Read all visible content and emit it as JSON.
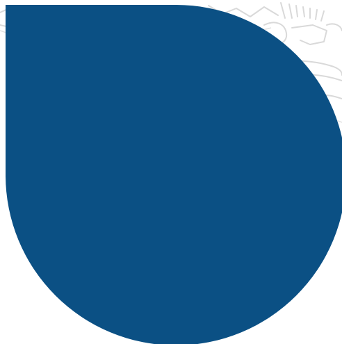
{
  "colors": {
    "background": "#ffffff",
    "shape_fill": "#0b5084",
    "watermark_stroke": "#d9d9d9"
  },
  "shape": {
    "kind": "teardrop",
    "pointed_corner": "top-left"
  },
  "watermark": {
    "kind": "faint outlined lettering",
    "position": "top edge"
  }
}
